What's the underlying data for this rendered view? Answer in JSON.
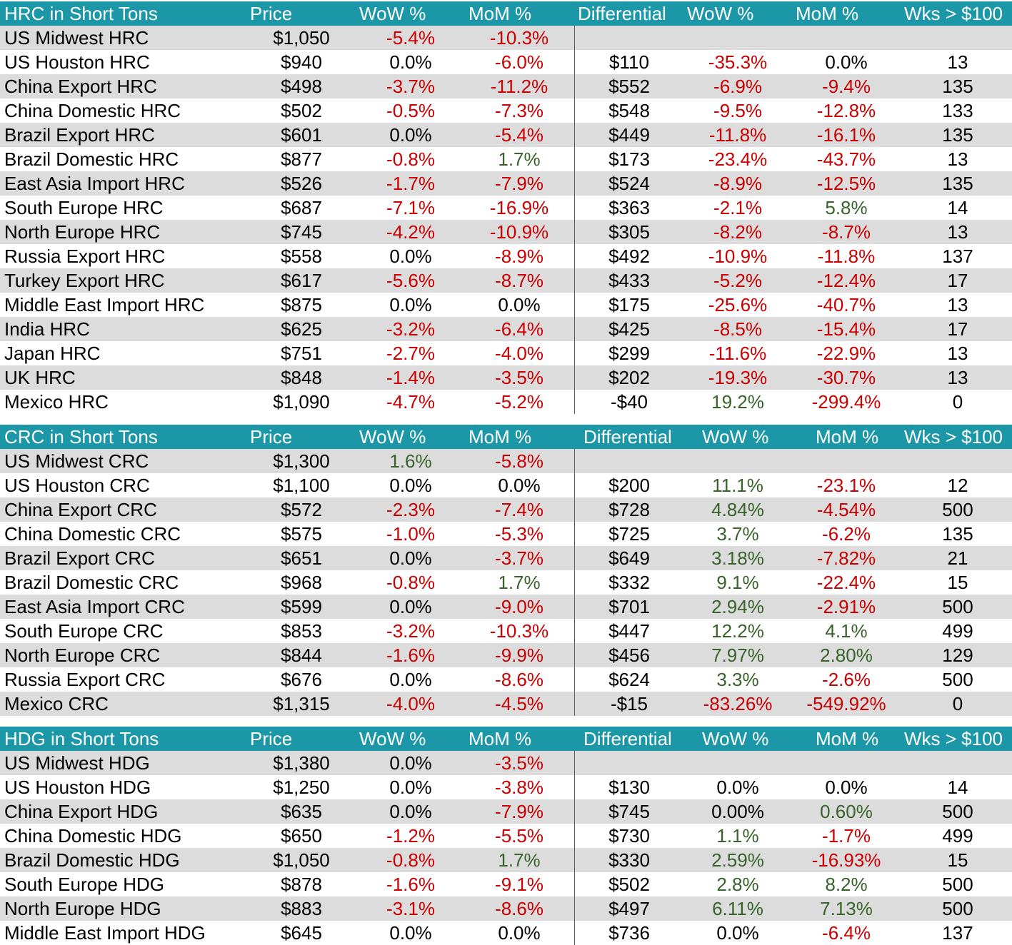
{
  "chart_data": [
    {
      "type": "table",
      "title": "HRC in Short Tons",
      "columns": [
        "HRC in Short Tons",
        "Price",
        "WoW %",
        "MoM %",
        "Differential",
        "WoW %",
        "MoM %",
        "Wks > $100"
      ],
      "rows": [
        [
          "US Midwest HRC",
          "$1,050",
          "-5.4%",
          "-10.3%",
          "",
          "",
          "",
          ""
        ],
        [
          "US Houston HRC",
          "$940",
          "0.0%",
          "-6.0%",
          "$110",
          "-35.3%",
          "0.0%",
          "13"
        ],
        [
          "China Export HRC",
          "$498",
          "-3.7%",
          "-11.2%",
          "$552",
          "-6.9%",
          "-9.4%",
          "135"
        ],
        [
          "China Domestic HRC",
          "$502",
          "-0.5%",
          "-7.3%",
          "$548",
          "-9.5%",
          "-12.8%",
          "133"
        ],
        [
          "Brazil Export HRC",
          "$601",
          "0.0%",
          "-5.4%",
          "$449",
          "-11.8%",
          "-16.1%",
          "135"
        ],
        [
          "Brazil Domestic HRC",
          "$877",
          "-0.8%",
          "1.7%",
          "$173",
          "-23.4%",
          "-43.7%",
          "13"
        ],
        [
          "East Asia Import HRC",
          "$526",
          "-1.7%",
          "-7.9%",
          "$524",
          "-8.9%",
          "-12.5%",
          "135"
        ],
        [
          "South Europe HRC",
          "$687",
          "-7.1%",
          "-16.9%",
          "$363",
          "-2.1%",
          "5.8%",
          "14"
        ],
        [
          "North Europe HRC",
          "$745",
          "-4.2%",
          "-10.9%",
          "$305",
          "-8.2%",
          "-8.7%",
          "13"
        ],
        [
          "Russia Export HRC",
          "$558",
          "0.0%",
          "-8.9%",
          "$492",
          "-10.9%",
          "-11.8%",
          "137"
        ],
        [
          "Turkey Export HRC",
          "$617",
          "-5.6%",
          "-8.7%",
          "$433",
          "-5.2%",
          "-12.4%",
          "17"
        ],
        [
          "Middle East Import HRC",
          "$875",
          "0.0%",
          "0.0%",
          "$175",
          "-25.6%",
          "-40.7%",
          "13"
        ],
        [
          "India HRC",
          "$625",
          "-3.2%",
          "-6.4%",
          "$425",
          "-8.5%",
          "-15.4%",
          "17"
        ],
        [
          "Japan HRC",
          "$751",
          "-2.7%",
          "-4.0%",
          "$299",
          "-11.6%",
          "-22.9%",
          "13"
        ],
        [
          "UK HRC",
          "$848",
          "-1.4%",
          "-3.5%",
          "$202",
          "-19.3%",
          "-30.7%",
          "13"
        ],
        [
          "Mexico HRC",
          "$1,090",
          "-4.7%",
          "-5.2%",
          "-$40",
          "19.2%",
          "-299.4%",
          "0"
        ]
      ]
    },
    {
      "type": "table",
      "title": "CRC in Short Tons",
      "columns": [
        "CRC in Short Tons",
        "Price",
        "WoW %",
        "MoM %",
        "Differential",
        "WoW %",
        "MoM %",
        "Wks > $100"
      ],
      "rows": [
        [
          "US Midwest CRC",
          "$1,300",
          "1.6%",
          "-5.8%",
          "",
          "",
          "",
          ""
        ],
        [
          "US Houston CRC",
          "$1,100",
          "0.0%",
          "0.0%",
          "$200",
          "11.1%",
          "-23.1%",
          "12"
        ],
        [
          "China Export CRC",
          "$572",
          "-2.3%",
          "-7.4%",
          "$728",
          "4.84%",
          "-4.54%",
          "500"
        ],
        [
          "China Domestic CRC",
          "$575",
          "-1.0%",
          "-5.3%",
          "$725",
          "3.7%",
          "-6.2%",
          "135"
        ],
        [
          "Brazil Export CRC",
          "$651",
          "0.0%",
          "-3.7%",
          "$649",
          "3.18%",
          "-7.82%",
          "21"
        ],
        [
          "Brazil Domestic CRC",
          "$968",
          "-0.8%",
          "1.7%",
          "$332",
          "9.1%",
          "-22.4%",
          "15"
        ],
        [
          "East Asia Import CRC",
          "$599",
          "0.0%",
          "-9.0%",
          "$701",
          "2.94%",
          "-2.91%",
          "500"
        ],
        [
          "South Europe CRC",
          "$853",
          "-3.2%",
          "-10.3%",
          "$447",
          "12.2%",
          "4.1%",
          "499"
        ],
        [
          "North Europe CRC",
          "$844",
          "-1.6%",
          "-9.9%",
          "$456",
          "7.97%",
          "2.80%",
          "129"
        ],
        [
          "Russia Export CRC",
          "$676",
          "0.0%",
          "-8.6%",
          "$624",
          "3.3%",
          "-2.6%",
          "500"
        ],
        [
          "Mexico CRC",
          "$1,315",
          "-4.0%",
          "-4.5%",
          "-$15",
          "-83.26%",
          "-549.92%",
          "0"
        ]
      ]
    },
    {
      "type": "table",
      "title": "HDG in Short Tons",
      "columns": [
        "HDG in Short Tons",
        "Price",
        "WoW %",
        "MoM %",
        "Differential",
        "WoW %",
        "MoM %",
        "Wks > $100"
      ],
      "rows": [
        [
          "US Midwest HDG",
          "$1,380",
          "0.0%",
          "-3.5%",
          "",
          "",
          "",
          ""
        ],
        [
          "US Houston HDG",
          "$1,250",
          "0.0%",
          "-3.8%",
          "$130",
          "0.0%",
          "0.0%",
          "14"
        ],
        [
          "China Export HDG",
          "$635",
          "0.0%",
          "-7.9%",
          "$745",
          "0.00%",
          "0.60%",
          "500"
        ],
        [
          "China Domestic HDG",
          "$650",
          "-1.2%",
          "-5.5%",
          "$730",
          "1.1%",
          "-1.7%",
          "499"
        ],
        [
          "Brazil Domestic HDG",
          "$1,050",
          "-0.8%",
          "1.7%",
          "$330",
          "2.59%",
          "-16.93%",
          "15"
        ],
        [
          "South Europe HDG",
          "$878",
          "-1.6%",
          "-9.1%",
          "$502",
          "2.8%",
          "8.2%",
          "500"
        ],
        [
          "North Europe HDG",
          "$883",
          "-3.1%",
          "-8.6%",
          "$497",
          "6.11%",
          "7.13%",
          "500"
        ],
        [
          "Middle East Import HDG",
          "$645",
          "0.0%",
          "0.0%",
          "$736",
          "0.0%",
          "-6.4%",
          "137"
        ]
      ]
    }
  ],
  "colors": {
    "header_bg": "#1b97a8",
    "header_text": "#ffffff",
    "stripe_bg": "#dcdcdc",
    "negative": "#cc0000",
    "positive": "#38632a",
    "neutral": "#000000"
  }
}
